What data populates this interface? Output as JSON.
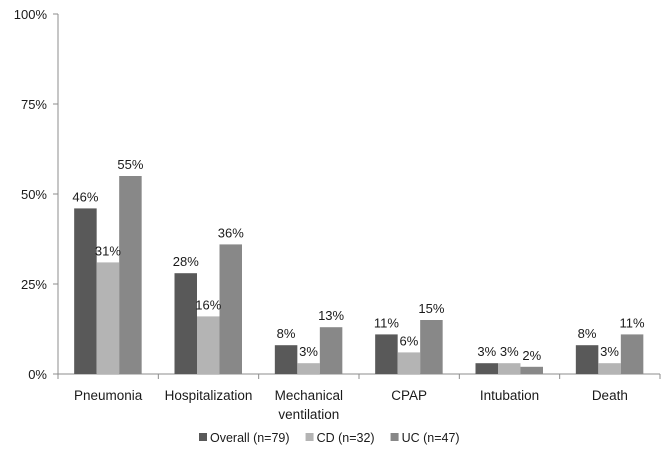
{
  "chart_data": {
    "type": "bar",
    "categories": [
      "Pneumonia",
      "Hospitalization",
      "Mechanical ventilation",
      "CPAP",
      "Intubation",
      "Death"
    ],
    "category_lines": [
      [
        "Pneumonia"
      ],
      [
        "Hospitalization"
      ],
      [
        "Mechanical",
        "ventilation"
      ],
      [
        "CPAP"
      ],
      [
        "Intubation"
      ],
      [
        "Death"
      ]
    ],
    "series": [
      {
        "name": "Overall (n=79)",
        "color": "#595959",
        "values": [
          46,
          28,
          8,
          11,
          3,
          8
        ],
        "labels": [
          "46%",
          "28%",
          "8%",
          "11%",
          "3%",
          "8%"
        ]
      },
      {
        "name": "CD (n=32)",
        "color": "#b4b4b4",
        "values": [
          31,
          16,
          3,
          6,
          3,
          3
        ],
        "labels": [
          "31%",
          "16%",
          "3%",
          "6%",
          "3%",
          "3%"
        ]
      },
      {
        "name": "UC (n=47)",
        "color": "#888888",
        "values": [
          55,
          36,
          13,
          15,
          2,
          11
        ],
        "labels": [
          "55%",
          "36%",
          "13%",
          "15%",
          "2%",
          "11%"
        ]
      }
    ],
    "ylim": [
      0,
      100
    ],
    "yticks": [
      0,
      25,
      50,
      75,
      100
    ],
    "ytick_labels": [
      "0%",
      "25%",
      "50%",
      "75%",
      "100%"
    ],
    "title": "",
    "xlabel": "",
    "ylabel": "",
    "grid": false,
    "legend_position": "bottom"
  }
}
